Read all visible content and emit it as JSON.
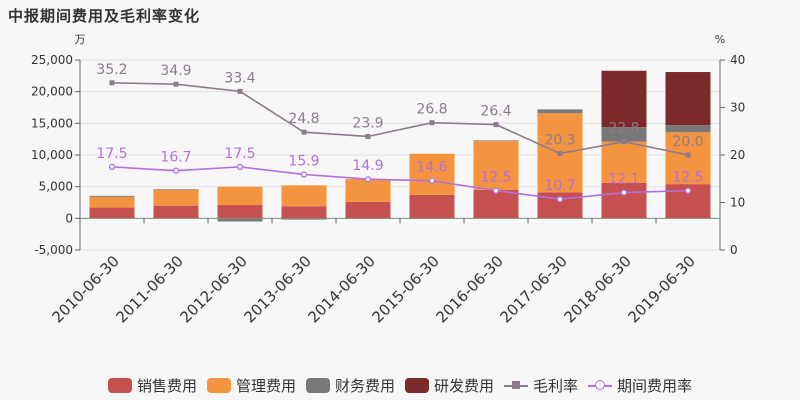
{
  "chart_data": {
    "type": "bar",
    "title": "中报期间费用及毛利率变化",
    "y_left_unit": "万",
    "y_right_unit": "%",
    "categories": [
      "2010-06-30",
      "2011-06-30",
      "2012-06-30",
      "2013-06-30",
      "2014-06-30",
      "2015-06-30",
      "2016-06-30",
      "2017-06-30",
      "2018-06-30",
      "2019-06-30"
    ],
    "y_left": {
      "ticks": [
        -5000,
        0,
        5000,
        10000,
        15000,
        20000,
        25000
      ],
      "tick_labels": [
        "-5,000",
        "0",
        "5,000",
        "10,000",
        "15,000",
        "20,000",
        "25,000"
      ],
      "lim": [
        -5000,
        25000
      ]
    },
    "y_right": {
      "ticks": [
        0,
        10,
        20,
        30,
        40
      ],
      "tick_labels": [
        "0",
        "10",
        "20",
        "30",
        "40"
      ],
      "lim": [
        0,
        40
      ]
    },
    "bar_series": [
      {
        "name": "销售费用",
        "color": "#c64f4f",
        "values": [
          1700,
          2000,
          2100,
          1900,
          2600,
          3700,
          4500,
          4100,
          5600,
          5400
        ]
      },
      {
        "name": "管理费用",
        "color": "#f5943f",
        "values": [
          1700,
          2500,
          2900,
          3300,
          3600,
          6500,
          7700,
          12500,
          6500,
          8200
        ]
      },
      {
        "name": "财务费用",
        "color": "#787878",
        "values": [
          150,
          100,
          -500,
          -200,
          -50,
          -100,
          100,
          600,
          2300,
          1100
        ]
      },
      {
        "name": "研发费用",
        "color": "#7b2a2a",
        "values": [
          0,
          0,
          0,
          0,
          0,
          0,
          0,
          0,
          8900,
          8400
        ]
      }
    ],
    "line_series": [
      {
        "name": "毛利率",
        "color": "#8c7b8c",
        "marker": "square",
        "values": [
          35.2,
          34.9,
          33.4,
          24.8,
          23.9,
          26.8,
          26.4,
          20.3,
          22.8,
          20.0
        ],
        "labels": [
          "35.2",
          "34.9",
          "33.4",
          "24.8",
          "23.9",
          "26.8",
          "26.4",
          "20.3",
          "22.8",
          "20.0"
        ]
      },
      {
        "name": "期间费用率",
        "color": "#b36fe0",
        "marker": "circle",
        "values": [
          17.5,
          16.7,
          17.5,
          15.9,
          14.9,
          14.6,
          12.5,
          10.7,
          12.1,
          12.5
        ],
        "labels": [
          "17.5",
          "16.7",
          "17.5",
          "15.9",
          "14.9",
          "14.6",
          "12.5",
          "10.7",
          "12.1",
          "12.5"
        ]
      }
    ],
    "grid": true,
    "legend_position": "bottom"
  }
}
